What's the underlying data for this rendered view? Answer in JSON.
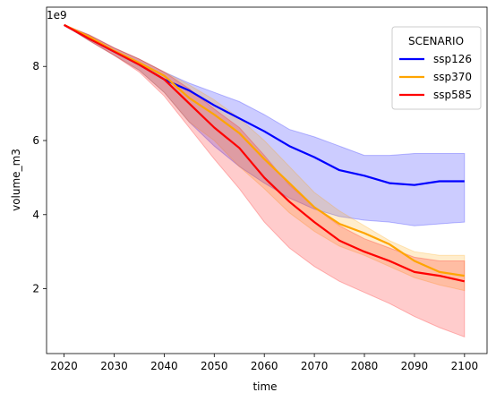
{
  "chart_data": {
    "type": "line",
    "xlabel": "time",
    "ylabel": "volume_m3",
    "y_scale_label": "1e9",
    "xlim": [
      2016.5,
      2104.5
    ],
    "ylim": [
      0.25,
      9.6
    ],
    "x_ticks": [
      2020,
      2030,
      2040,
      2050,
      2060,
      2070,
      2080,
      2090,
      2100
    ],
    "x_tick_labels": [
      "2020",
      "2030",
      "2040",
      "2050",
      "2060",
      "2070",
      "2080",
      "2090",
      "2100"
    ],
    "y_ticks": [
      2,
      4,
      6,
      8
    ],
    "y_tick_labels": [
      "2",
      "4",
      "6",
      "8"
    ],
    "grid": false,
    "legend": {
      "title": "SCENARIO",
      "placement": "top-right"
    },
    "x": [
      2020,
      2025,
      2030,
      2035,
      2040,
      2045,
      2050,
      2055,
      2060,
      2065,
      2070,
      2075,
      2080,
      2085,
      2090,
      2095,
      2100
    ],
    "series": [
      {
        "name": "ssp126",
        "color": "#0000ff",
        "fill": "#0000ff",
        "values": [
          9.12,
          8.75,
          8.4,
          8.05,
          7.65,
          7.35,
          6.95,
          6.6,
          6.25,
          5.85,
          5.55,
          5.2,
          5.05,
          4.85,
          4.8,
          4.9,
          4.9
        ],
        "lower": [
          9.12,
          8.7,
          8.3,
          7.9,
          7.3,
          6.5,
          5.85,
          5.3,
          4.85,
          4.45,
          4.15,
          3.95,
          3.85,
          3.8,
          3.7,
          3.75,
          3.8
        ],
        "upper": [
          9.12,
          8.85,
          8.5,
          8.2,
          7.85,
          7.55,
          7.3,
          7.05,
          6.7,
          6.3,
          6.1,
          5.85,
          5.6,
          5.6,
          5.65,
          5.65,
          5.65
        ]
      },
      {
        "name": "ssp370",
        "color": "#ffa500",
        "fill": "#ffa500",
        "values": [
          9.12,
          8.8,
          8.42,
          8.1,
          7.75,
          7.15,
          6.7,
          6.2,
          5.5,
          4.85,
          4.2,
          3.75,
          3.5,
          3.2,
          2.75,
          2.45,
          2.35
        ],
        "lower": [
          9.12,
          8.7,
          8.3,
          7.9,
          7.3,
          6.5,
          6.0,
          5.3,
          4.7,
          4.05,
          3.55,
          3.15,
          2.9,
          2.6,
          2.3,
          2.1,
          1.95
        ],
        "upper": [
          9.12,
          8.85,
          8.5,
          8.2,
          7.85,
          7.5,
          7.1,
          6.6,
          6.0,
          5.3,
          4.6,
          4.1,
          3.7,
          3.3,
          3.0,
          2.9,
          2.9
        ]
      },
      {
        "name": "ssp585",
        "color": "#ff0000",
        "fill": "#ff0000",
        "values": [
          9.12,
          8.75,
          8.4,
          8.05,
          7.65,
          7.0,
          6.35,
          5.8,
          5.0,
          4.35,
          3.8,
          3.3,
          3.0,
          2.75,
          2.45,
          2.35,
          2.2
        ],
        "lower": [
          9.12,
          8.7,
          8.3,
          7.85,
          7.2,
          6.35,
          5.5,
          4.7,
          3.8,
          3.1,
          2.6,
          2.2,
          1.9,
          1.6,
          1.25,
          0.95,
          0.7
        ],
        "upper": [
          9.12,
          8.85,
          8.5,
          8.2,
          7.85,
          7.4,
          6.85,
          6.35,
          5.6,
          4.8,
          4.2,
          3.7,
          3.35,
          3.1,
          2.85,
          2.75,
          2.75
        ]
      }
    ]
  }
}
